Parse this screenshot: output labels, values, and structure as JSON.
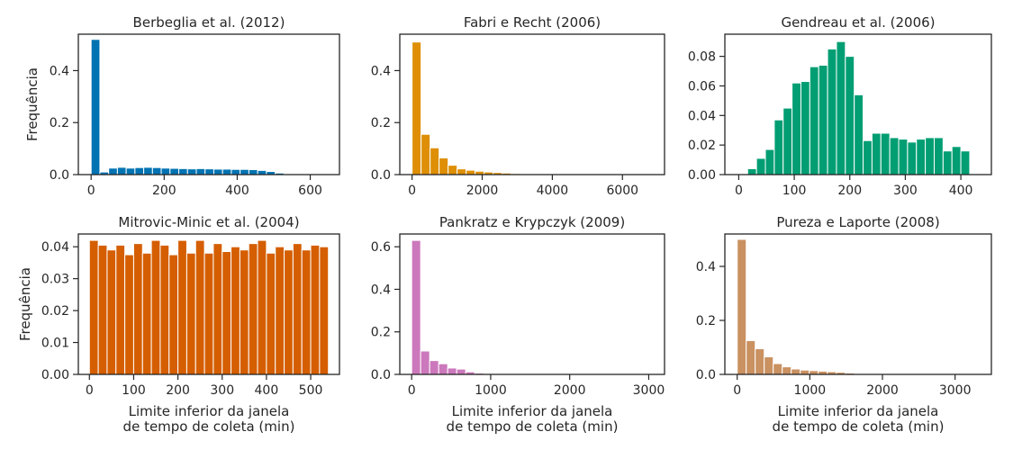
{
  "chart_data": [
    {
      "type": "bar",
      "title": "Berbeglia et al. (2012)",
      "ylabel": "Frequência",
      "xlabel": "",
      "color": "#0173b2",
      "xlim": [
        -35,
        680
      ],
      "ylim": [
        0,
        0.54
      ],
      "xticks": [
        0,
        200,
        400,
        600
      ],
      "xtick_labels": [
        "0",
        "200",
        "400",
        "600"
      ],
      "yticks": [
        0,
        0.2,
        0.4
      ],
      "ytick_labels": [
        "0.0",
        "0.2",
        "0.4"
      ],
      "bin_edges": [
        0,
        24,
        48,
        72,
        96,
        120,
        144,
        168,
        192,
        216,
        240,
        264,
        288,
        312,
        336,
        360,
        384,
        408,
        432,
        456,
        480,
        504,
        528,
        552,
        576,
        600,
        624,
        648
      ],
      "values": [
        0.52,
        0.01,
        0.025,
        0.028,
        0.025,
        0.027,
        0.028,
        0.027,
        0.025,
        0.024,
        0.023,
        0.022,
        0.023,
        0.022,
        0.021,
        0.021,
        0.02,
        0.02,
        0.019,
        0.016,
        0.012,
        0.006,
        0.003,
        0.002,
        0.001,
        0.001,
        0.0
      ]
    },
    {
      "type": "bar",
      "title": "Fabri e Recht (2006)",
      "ylabel": "",
      "xlabel": "",
      "color": "#de8f05",
      "xlim": [
        -350,
        7200
      ],
      "ylim": [
        0,
        0.54
      ],
      "xticks": [
        0,
        2000,
        4000,
        6000
      ],
      "xtick_labels": [
        "0",
        "2000",
        "4000",
        "6000"
      ],
      "yticks": [
        0,
        0.2,
        0.4
      ],
      "ytick_labels": [
        "0.0",
        "0.2",
        "0.4"
      ],
      "bin_edges": [
        0,
        257,
        514,
        771,
        1028,
        1285,
        1542,
        1799,
        2056,
        2313,
        2570,
        2827,
        3084,
        3341,
        3598,
        3855,
        4112,
        4369,
        4626,
        4883,
        5140,
        5397,
        5654,
        5911,
        6168,
        6425,
        6682,
        6939
      ],
      "values": [
        0.51,
        0.155,
        0.103,
        0.064,
        0.036,
        0.022,
        0.017,
        0.013,
        0.01,
        0.008,
        0.006,
        0.004,
        0.003,
        0.002,
        0.002,
        0.001,
        0.001,
        0.001,
        0.001,
        0.0,
        0.0,
        0.0,
        0.0,
        0.0,
        0.0,
        0.0,
        0.0
      ]
    },
    {
      "type": "bar",
      "title": "Gendreau et al. (2006)",
      "ylabel": "",
      "xlabel": "",
      "color": "#029e73",
      "xlim": [
        -25,
        455
      ],
      "ylim": [
        0,
        0.095
      ],
      "xticks": [
        0,
        100,
        200,
        300,
        400
      ],
      "xtick_labels": [
        "0",
        "100",
        "200",
        "300",
        "400"
      ],
      "yticks": [
        0,
        0.02,
        0.04,
        0.06,
        0.08
      ],
      "ytick_labels": [
        "0.00",
        "0.02",
        "0.04",
        "0.06",
        "0.08"
      ],
      "bin_edges": [
        0,
        16,
        32,
        48,
        64,
        80,
        96,
        112,
        128,
        144,
        160,
        176,
        192,
        208,
        224,
        240,
        256,
        272,
        288,
        304,
        320,
        336,
        352,
        368,
        384,
        400,
        416,
        432
      ],
      "values": [
        0.0,
        0.004,
        0.011,
        0.017,
        0.037,
        0.045,
        0.062,
        0.063,
        0.073,
        0.074,
        0.085,
        0.09,
        0.08,
        0.054,
        0.023,
        0.028,
        0.028,
        0.025,
        0.024,
        0.022,
        0.024,
        0.025,
        0.025,
        0.016,
        0.019,
        0.016,
        0.0
      ]
    },
    {
      "type": "bar",
      "title": "Mitrovic-Minic et al. (2004)",
      "ylabel": "Frequência",
      "xlabel": "Limite inferior da janela\nde tempo de coleta (min)",
      "color": "#d55e00",
      "xlim": [
        -25,
        565
      ],
      "ylim": [
        0,
        0.044
      ],
      "xticks": [
        0,
        100,
        200,
        300,
        400,
        500
      ],
      "xtick_labels": [
        "0",
        "100",
        "200",
        "300",
        "400",
        "500"
      ],
      "yticks": [
        0,
        0.01,
        0.02,
        0.03,
        0.04
      ],
      "ytick_labels": [
        "0.00",
        "0.01",
        "0.02",
        "0.03",
        "0.04"
      ],
      "bin_edges": [
        0,
        20,
        40,
        60,
        80,
        100,
        120,
        140,
        160,
        180,
        200,
        220,
        240,
        260,
        280,
        300,
        320,
        340,
        360,
        380,
        400,
        420,
        440,
        460,
        480,
        500,
        520,
        540
      ],
      "values": [
        0.042,
        0.0405,
        0.039,
        0.0405,
        0.0375,
        0.041,
        0.038,
        0.042,
        0.0405,
        0.0375,
        0.042,
        0.038,
        0.042,
        0.038,
        0.041,
        0.0385,
        0.04,
        0.039,
        0.041,
        0.042,
        0.038,
        0.04,
        0.039,
        0.041,
        0.039,
        0.0405,
        0.04
      ]
    },
    {
      "type": "bar",
      "title": "Pankratz e Krypczyk (2009)",
      "ylabel": "",
      "xlabel": "Limite inferior da janela\nde tempo de coleta (min)",
      "color": "#cc78bc",
      "xlim": [
        -150,
        3200
      ],
      "ylim": [
        0,
        0.66
      ],
      "xticks": [
        0,
        1000,
        2000,
        3000
      ],
      "xtick_labels": [
        "0",
        "1000",
        "2000",
        "3000"
      ],
      "yticks": [
        0,
        0.2,
        0.4,
        0.6
      ],
      "ytick_labels": [
        "0.0",
        "0.2",
        "0.4",
        "0.6"
      ],
      "bin_edges": [
        0,
        114,
        228,
        342,
        456,
        570,
        684,
        798,
        912,
        1026,
        1140,
        1254,
        1368,
        1482,
        1596,
        1710,
        1824,
        1938,
        2052,
        2166,
        2280,
        2394,
        2508,
        2622,
        2736,
        2850,
        2964,
        3078
      ],
      "values": [
        0.63,
        0.11,
        0.065,
        0.05,
        0.03,
        0.025,
        0.012,
        0.006,
        0.003,
        0.002,
        0.001,
        0.001,
        0.0,
        0.0,
        0.0,
        0.0,
        0.0,
        0.0,
        0.0,
        0.0,
        0.0,
        0.0,
        0.0,
        0.0,
        0.0,
        0.0,
        0.0
      ]
    },
    {
      "type": "bar",
      "title": "Pureza e Laporte (2008)",
      "ylabel": "",
      "xlabel": "Limite inferior da janela\nde tempo de coleta (min)",
      "color": "#ca9161",
      "xlim": [
        -170,
        3500
      ],
      "ylim": [
        0,
        0.52
      ],
      "xticks": [
        0,
        1000,
        2000,
        3000
      ],
      "xtick_labels": [
        "0",
        "1000",
        "2000",
        "3000"
      ],
      "yticks": [
        0,
        0.2,
        0.4
      ],
      "ytick_labels": [
        "0.0",
        "0.2",
        "0.4"
      ],
      "bin_edges": [
        0,
        124,
        248,
        372,
        496,
        620,
        744,
        868,
        992,
        1116,
        1240,
        1364,
        1488,
        1612,
        1736,
        1860,
        1984,
        2108,
        2232,
        2356,
        2480,
        2604,
        2728,
        2852,
        2976,
        3100,
        3224,
        3348
      ],
      "values": [
        0.5,
        0.125,
        0.095,
        0.065,
        0.04,
        0.028,
        0.02,
        0.016,
        0.014,
        0.012,
        0.01,
        0.008,
        0.005,
        0.003,
        0.002,
        0.001,
        0.001,
        0.001,
        0.0,
        0.0,
        0.0,
        0.0,
        0.0,
        0.0,
        0.0,
        0.0,
        0.0
      ]
    }
  ]
}
